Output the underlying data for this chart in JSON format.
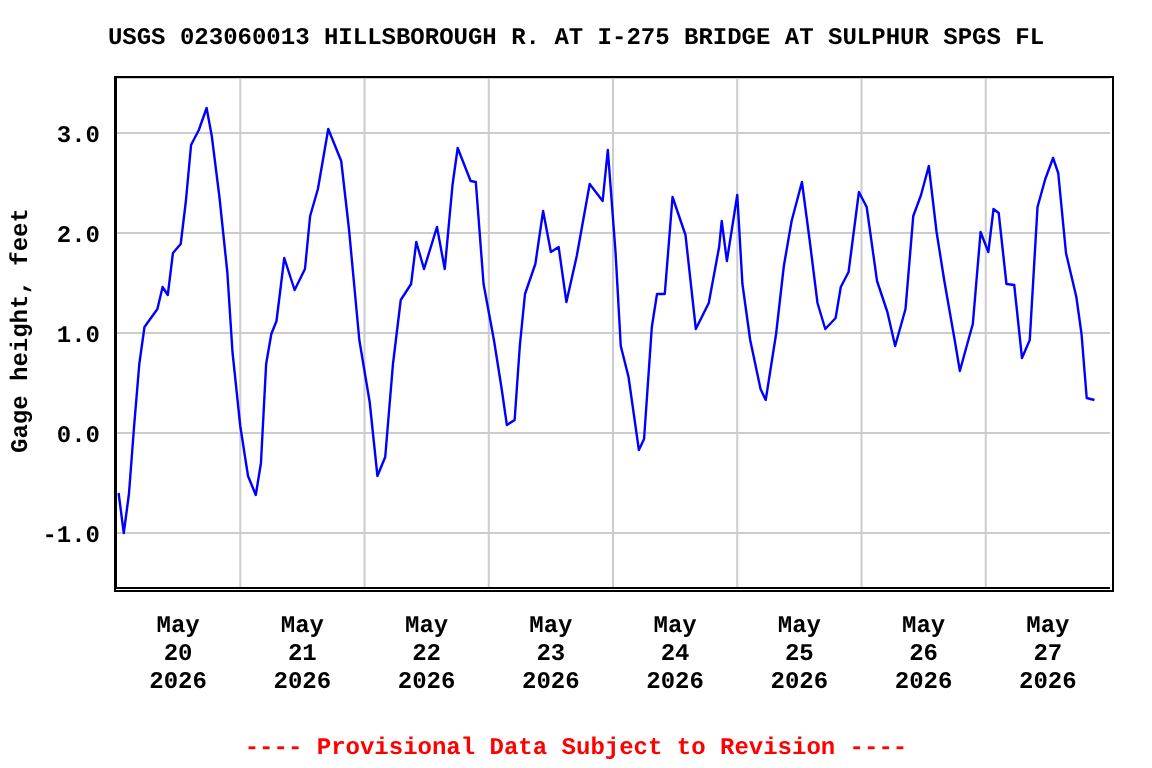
{
  "chart_data": {
    "type": "line",
    "title": "USGS 023060013 HILLSBOROUGH R. AT I-275 BRIDGE AT SULPHUR SPGS FL",
    "ylabel": "Gage height, feet",
    "annotations": [
      "---- Provisional Data Subject to Revision ----"
    ],
    "x": [
      "2026-05-20T00:30",
      "2026-05-20T01:30",
      "2026-05-20T02:30",
      "2026-05-20T03:30",
      "2026-05-20T04:30",
      "2026-05-20T05:30",
      "2026-05-20T08:00",
      "2026-05-20T09:00",
      "2026-05-20T10:00",
      "2026-05-20T11:00",
      "2026-05-20T12:30",
      "2026-05-20T13:30",
      "2026-05-20T14:30",
      "2026-05-20T16:00",
      "2026-05-20T17:30",
      "2026-05-20T18:30",
      "2026-05-20T20:00",
      "2026-05-20T21:30",
      "2026-05-20T22:30",
      "2026-05-21T00:00",
      "2026-05-21T01:30",
      "2026-05-21T03:00",
      "2026-05-21T04:00",
      "2026-05-21T05:00",
      "2026-05-21T06:00",
      "2026-05-21T07:00",
      "2026-05-21T08:30",
      "2026-05-21T10:30",
      "2026-05-21T12:30",
      "2026-05-21T13:30",
      "2026-05-21T15:00",
      "2026-05-21T17:00",
      "2026-05-21T19:30",
      "2026-05-21T21:00",
      "2026-05-21T23:00",
      "2026-05-22T01:00",
      "2026-05-22T02:30",
      "2026-05-22T04:00",
      "2026-05-22T05:30",
      "2026-05-22T07:00",
      "2026-05-22T09:00",
      "2026-05-22T10:00",
      "2026-05-22T11:30",
      "2026-05-22T14:00",
      "2026-05-22T15:30",
      "2026-05-22T17:00",
      "2026-05-22T18:00",
      "2026-05-22T20:30",
      "2026-05-22T21:30",
      "2026-05-22T23:00",
      "2026-05-23T01:00",
      "2026-05-23T02:30",
      "2026-05-23T03:30",
      "2026-05-23T05:00",
      "2026-05-23T06:00",
      "2026-05-23T07:00",
      "2026-05-23T09:00",
      "2026-05-23T10:30",
      "2026-05-23T12:00",
      "2026-05-23T13:30",
      "2026-05-23T15:00",
      "2026-05-23T17:00",
      "2026-05-23T19:30",
      "2026-05-23T22:00",
      "2026-05-23T23:00",
      "2026-05-24T00:30",
      "2026-05-24T01:30",
      "2026-05-24T03:00",
      "2026-05-24T05:00",
      "2026-05-24T06:00",
      "2026-05-24T07:30",
      "2026-05-24T08:30",
      "2026-05-24T10:00",
      "2026-05-24T11:30",
      "2026-05-24T14:00",
      "2026-05-24T16:00",
      "2026-05-24T18:30",
      "2026-05-24T20:30",
      "2026-05-24T21:00",
      "2026-05-24T22:00",
      "2026-05-25T00:00",
      "2026-05-25T01:00",
      "2026-05-25T02:30",
      "2026-05-25T04:30",
      "2026-05-25T05:30",
      "2026-05-25T07:30",
      "2026-05-25T09:00",
      "2026-05-25T10:30",
      "2026-05-25T12:30",
      "2026-05-25T14:00",
      "2026-05-25T15:30",
      "2026-05-25T17:00",
      "2026-05-25T19:00",
      "2026-05-25T20:00",
      "2026-05-25T21:30",
      "2026-05-25T23:30",
      "2026-05-26T01:00",
      "2026-05-26T03:00",
      "2026-05-26T05:00",
      "2026-05-26T06:30",
      "2026-05-26T08:30",
      "2026-05-26T10:00",
      "2026-05-26T11:30",
      "2026-05-26T13:00",
      "2026-05-26T14:30",
      "2026-05-26T16:00",
      "2026-05-26T18:00",
      "2026-05-26T19:00",
      "2026-05-26T20:00",
      "2026-05-26T21:30",
      "2026-05-26T23:00",
      "2026-05-27T00:30",
      "2026-05-27T01:30",
      "2026-05-27T02:30",
      "2026-05-27T04:00",
      "2026-05-27T05:30",
      "2026-05-27T07:00",
      "2026-05-27T08:30",
      "2026-05-27T10:00",
      "2026-05-27T11:30",
      "2026-05-27T13:00",
      "2026-05-27T14:00",
      "2026-05-27T15:30",
      "2026-05-27T17:30",
      "2026-05-27T18:30",
      "2026-05-27T19:30",
      "2026-05-27T21:00"
    ],
    "series": [
      {
        "color": "#0000ff",
        "values": [
          -0.6,
          -1.0,
          -0.61,
          0.07,
          0.69,
          1.06,
          1.24,
          1.46,
          1.38,
          1.8,
          1.89,
          2.32,
          2.88,
          3.03,
          3.25,
          2.97,
          2.35,
          1.61,
          0.81,
          0.07,
          -0.43,
          -0.62,
          -0.3,
          0.69,
          0.99,
          1.12,
          1.75,
          1.43,
          1.64,
          2.17,
          2.44,
          3.04,
          2.72,
          2.04,
          0.93,
          0.31,
          -0.43,
          -0.24,
          0.69,
          1.33,
          1.49,
          1.91,
          1.64,
          2.06,
          1.64,
          2.48,
          2.85,
          2.52,
          2.51,
          1.49,
          0.93,
          0.44,
          0.08,
          0.13,
          0.87,
          1.39,
          1.69,
          2.22,
          1.81,
          1.86,
          1.31,
          1.77,
          2.49,
          2.32,
          2.83,
          1.8,
          0.87,
          0.56,
          -0.17,
          -0.06,
          1.06,
          1.39,
          1.39,
          2.36,
          1.98,
          1.04,
          1.3,
          1.86,
          2.12,
          1.72,
          2.38,
          1.49,
          0.93,
          0.44,
          0.33,
          0.99,
          1.67,
          2.12,
          2.51,
          1.92,
          1.3,
          1.04,
          1.15,
          1.46,
          1.61,
          2.41,
          2.26,
          1.52,
          1.21,
          0.87,
          1.24,
          2.17,
          2.38,
          2.67,
          2.01,
          1.52,
          0.93,
          0.62,
          0.81,
          1.09,
          2.01,
          1.81,
          2.24,
          2.2,
          1.49,
          1.48,
          0.75,
          0.93,
          2.26,
          2.54,
          2.75,
          2.6,
          1.8,
          1.36,
          0.99,
          0.35,
          0.33
        ]
      }
    ],
    "xlim": [
      "2026-05-20T00:00",
      "2026-05-28T00:00"
    ],
    "xticks": [
      {
        "value": "2026-05-20T12:00",
        "label": "May\n20\n2026"
      },
      {
        "value": "2026-05-21T00:00",
        "label": null
      },
      {
        "value": "2026-05-21T12:00",
        "label": "May\n21\n2026"
      },
      {
        "value": "2026-05-22T00:00",
        "label": null
      },
      {
        "value": "2026-05-22T12:00",
        "label": "May\n22\n2026"
      },
      {
        "value": "2026-05-23T00:00",
        "label": null
      },
      {
        "value": "2026-05-23T12:00",
        "label": "May\n23\n2026"
      },
      {
        "value": "2026-05-24T00:00",
        "label": null
      },
      {
        "value": "2026-05-24T12:00",
        "label": "May\n24\n2026"
      },
      {
        "value": "2026-05-25T00:00",
        "label": null
      },
      {
        "value": "2026-05-25T12:00",
        "label": "May\n25\n2026"
      },
      {
        "value": "2026-05-26T00:00",
        "label": null
      },
      {
        "value": "2026-05-26T12:00",
        "label": "May\n26\n2026"
      },
      {
        "value": "2026-05-27T00:00",
        "label": null
      },
      {
        "value": "2026-05-27T12:00",
        "label": "May\n27\n2026"
      }
    ],
    "ylim": [
      -1.55,
      3.55
    ],
    "yticks": [
      {
        "value": -1,
        "label": "-1.0"
      },
      {
        "value": 0,
        "label": "0.0"
      },
      {
        "value": 1,
        "label": "1.0"
      },
      {
        "value": 2,
        "label": "2.0"
      },
      {
        "value": 3,
        "label": "3.0"
      }
    ],
    "grid": true,
    "legend": false,
    "marker": "none",
    "line_style": "solid"
  }
}
